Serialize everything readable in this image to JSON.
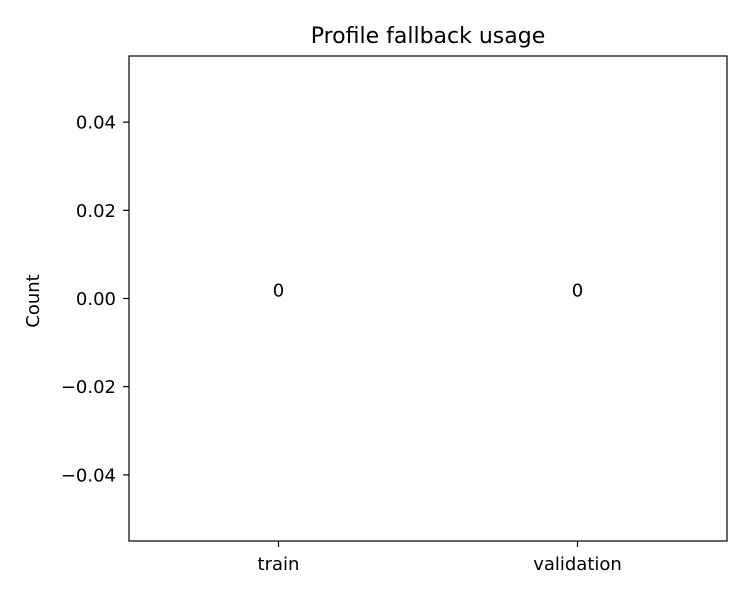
{
  "chart_data": {
    "type": "bar",
    "title": "Profile fallback usage",
    "xlabel": "",
    "ylabel": "Count",
    "categories": [
      "train",
      "validation"
    ],
    "values": [
      0,
      0
    ],
    "data_labels": [
      "0",
      "0"
    ],
    "ylim": [
      -0.055,
      0.055
    ],
    "yticks": [
      -0.04,
      -0.02,
      0.0,
      0.02,
      0.04
    ],
    "ytick_labels": [
      "−0.04",
      "−0.02",
      "0.00",
      "0.02",
      "0.04"
    ],
    "grid": false,
    "legend": "none"
  }
}
